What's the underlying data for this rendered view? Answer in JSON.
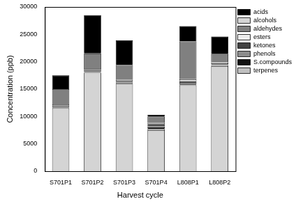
{
  "chart_data": {
    "type": "bar",
    "stacked": true,
    "grid": false,
    "legend": "right",
    "x_label": "Harvest cycle",
    "y_label": "Concentration (ppb)",
    "categories": [
      "S701P1",
      "S701P2",
      "S701P3",
      "S701P4",
      "L808P1",
      "L808P2"
    ],
    "ylim": [
      0,
      30000
    ],
    "yticks": [
      0,
      5000,
      10000,
      15000,
      20000,
      25000,
      30000
    ],
    "series": [
      {
        "name": "alcohols",
        "color": "#d4d4d4",
        "values": [
          11500,
          18000,
          16000,
          7500,
          15700,
          19200
        ]
      },
      {
        "name": "terpenes",
        "color": "#c0c0c0",
        "values": [
          100,
          100,
          100,
          200,
          150,
          100
        ]
      },
      {
        "name": "S.compounds",
        "color": "#111111",
        "values": [
          100,
          100,
          100,
          300,
          150,
          100
        ]
      },
      {
        "name": "phenols",
        "color": "#8c8c8c",
        "values": [
          100,
          100,
          100,
          200,
          150,
          100
        ]
      },
      {
        "name": "ketones",
        "color": "#404040",
        "values": [
          200,
          200,
          200,
          400,
          300,
          200
        ]
      },
      {
        "name": "esters",
        "color": "#ececec",
        "values": [
          200,
          200,
          200,
          200,
          350,
          200
        ]
      },
      {
        "name": "aldehydes",
        "color": "#808080",
        "values": [
          2800,
          2800,
          2700,
          1200,
          6900,
          1500
        ]
      },
      {
        "name": "acids",
        "color": "#000000",
        "values": [
          2500,
          7000,
          4500,
          300,
          2800,
          3200
        ]
      }
    ]
  }
}
